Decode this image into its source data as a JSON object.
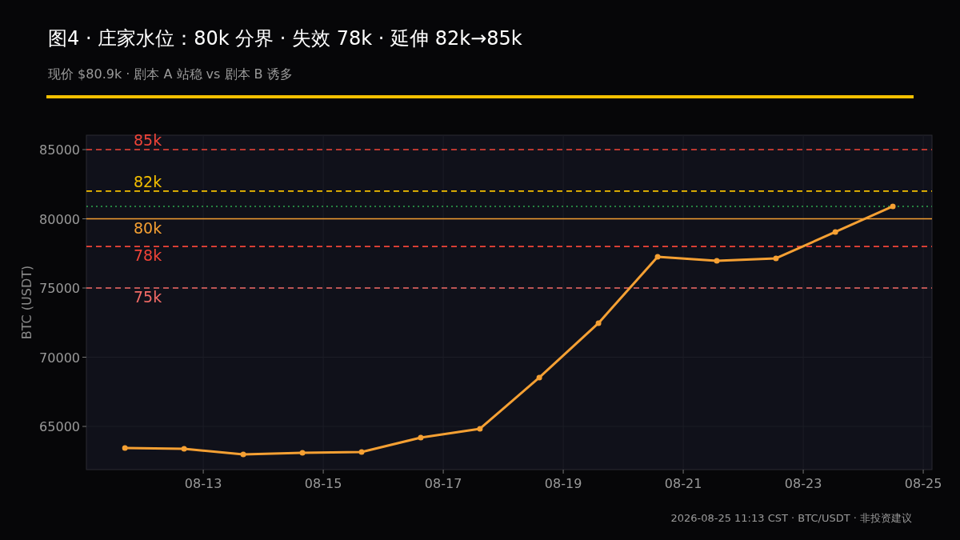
{
  "chart_data": {
    "type": "line",
    "title": "图4 · 庄家水位：80k 分界 · 失效 78k · 延伸 82k→85k",
    "subtitle": "现价 $80.9k · 剧本 A 站稳 vs 剧本 B 诱多",
    "ylabel": "BTC (USDT)",
    "annotations": [
      "2026-08-25 11:13 CST · BTC/USDT · 非投资建议"
    ],
    "x": [
      "2026-08-11T16:40",
      "2026-08-12T16:20",
      "2026-08-13T16:00",
      "2026-08-14T15:40",
      "2026-08-15T15:20",
      "2026-08-16T15:00",
      "2026-08-17T14:40",
      "2026-08-18T14:25",
      "2026-08-19T14:05",
      "2026-08-20T13:45",
      "2026-08-21T13:25",
      "2026-08-22T13:05",
      "2026-08-23T12:50",
      "2026-08-24T11:50"
    ],
    "series": [
      {
        "color": "#f5a033",
        "values": [
          63440,
          63380,
          62980,
          63090,
          63150,
          64190,
          64830,
          68530,
          72460,
          77250,
          76970,
          77140,
          79050,
          80900
        ]
      }
    ],
    "marker": "circle",
    "line_style": "solid",
    "grid": true,
    "xlim": [
      "2026-08-11T01:15",
      "2026-08-25T03:30"
    ],
    "xticks": [
      {
        "value": "2026-08-13",
        "label": "08-13"
      },
      {
        "value": "2026-08-15",
        "label": "08-15"
      },
      {
        "value": "2026-08-17",
        "label": "08-17"
      },
      {
        "value": "2026-08-19",
        "label": "08-19"
      },
      {
        "value": "2026-08-21",
        "label": "08-21"
      },
      {
        "value": "2026-08-23",
        "label": "08-23"
      },
      {
        "value": "2026-08-25",
        "label": "08-25"
      }
    ],
    "ylim": [
      61880,
      86040
    ],
    "yticks": [
      65000,
      70000,
      75000,
      80000,
      85000
    ],
    "ref_lines": [
      {
        "axis": "y",
        "value": 85000,
        "label": "85k",
        "color": "#f04438",
        "line_style": "dashed"
      },
      {
        "axis": "y",
        "value": 82000,
        "label": "82k",
        "color": "#f5c000",
        "line_style": "dashed"
      },
      {
        "axis": "y",
        "value": 80900,
        "color": "#2fa84f",
        "line_style": "dotted"
      },
      {
        "axis": "y",
        "value": 80000,
        "label": "80k",
        "color": "#f5a033",
        "line_style": "solid"
      },
      {
        "axis": "y",
        "value": 78000,
        "label": "78k",
        "color": "#f04438",
        "line_style": "dashed"
      },
      {
        "axis": "y",
        "value": 75000,
        "label": "75k",
        "color": "#f26b66",
        "line_style": "dashed"
      }
    ]
  }
}
